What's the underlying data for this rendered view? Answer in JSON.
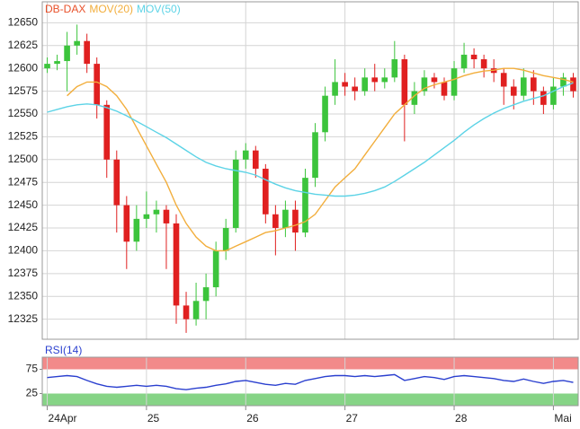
{
  "chart_data": [
    {
      "type": "candlestick",
      "categories": [
        "24Apr",
        null,
        null,
        null,
        null,
        null,
        null,
        null,
        null,
        null,
        "25",
        null,
        null,
        null,
        null,
        null,
        null,
        null,
        null,
        null,
        "26",
        null,
        null,
        null,
        null,
        null,
        null,
        null,
        null,
        null,
        "27",
        null,
        null,
        null,
        null,
        null,
        null,
        null,
        null,
        null,
        null,
        "28",
        null,
        null,
        null,
        null,
        null,
        null,
        null,
        null,
        null,
        "Mai",
        null,
        null
      ],
      "ylim": [
        12303,
        12673
      ],
      "yticks": [
        12325,
        12350,
        12375,
        12400,
        12425,
        12450,
        12475,
        12500,
        12525,
        12550,
        12575,
        12600,
        12625,
        12650
      ],
      "grid": true,
      "series": [
        {
          "name": "DB-DAX",
          "color": "#e8502a",
          "up_color": "#3cc43c",
          "down_color": "#e02020",
          "open": [
            12600,
            12605,
            12608,
            12625,
            12630,
            12605,
            12560,
            12500,
            12450,
            12410,
            12435,
            12440,
            12445,
            12430,
            12340,
            12325,
            12345,
            12360,
            12400,
            12425,
            12500,
            12510,
            12490,
            12440,
            12425,
            12445,
            12420,
            12480,
            12530,
            12570,
            12585,
            12580,
            12575,
            12590,
            12585,
            12590,
            12610,
            12560,
            12575,
            12590,
            12585,
            12570,
            12600,
            12615,
            12610,
            12600,
            12595,
            12580,
            12570,
            12590,
            12575,
            12560,
            12580,
            12590
          ],
          "high": [
            12612,
            12615,
            12640,
            12648,
            12638,
            12612,
            12565,
            12510,
            12460,
            12450,
            12465,
            12455,
            12450,
            12440,
            12355,
            12365,
            12375,
            12410,
            12435,
            12510,
            12518,
            12515,
            12495,
            12450,
            12455,
            12455,
            12490,
            12540,
            12580,
            12610,
            12595,
            12590,
            12600,
            12605,
            12600,
            12630,
            12615,
            12585,
            12598,
            12595,
            12590,
            12608,
            12628,
            12622,
            12615,
            12610,
            12600,
            12588,
            12600,
            12598,
            12580,
            12590,
            12595,
            12595
          ],
          "low": [
            12595,
            12598,
            12575,
            12615,
            12595,
            12545,
            12480,
            12420,
            12380,
            12400,
            12425,
            12420,
            12380,
            12320,
            12310,
            12318,
            12325,
            12350,
            12390,
            12420,
            12490,
            12480,
            12430,
            12395,
            12415,
            12400,
            12415,
            12470,
            12520,
            12560,
            12570,
            12565,
            12570,
            12575,
            12578,
            12585,
            12520,
            12550,
            12570,
            12578,
            12565,
            12565,
            12595,
            12600,
            12590,
            12585,
            12560,
            12555,
            12565,
            12560,
            12550,
            12555,
            12570,
            12568
          ],
          "close": [
            12605,
            12608,
            12625,
            12630,
            12605,
            12560,
            12500,
            12450,
            12410,
            12435,
            12440,
            12445,
            12430,
            12340,
            12325,
            12345,
            12360,
            12400,
            12425,
            12500,
            12510,
            12490,
            12440,
            12425,
            12445,
            12420,
            12480,
            12530,
            12570,
            12585,
            12580,
            12575,
            12590,
            12585,
            12590,
            12610,
            12560,
            12575,
            12590,
            12585,
            12570,
            12600,
            12615,
            12610,
            12600,
            12595,
            12580,
            12570,
            12590,
            12575,
            12560,
            12580,
            12590,
            12575
          ]
        },
        {
          "name": "MOV(20)",
          "type": "line",
          "color": "#f2ae3c",
          "values": [
            null,
            null,
            12570,
            12580,
            12585,
            12585,
            12580,
            12570,
            12555,
            12535,
            12515,
            12495,
            12475,
            12450,
            12430,
            12415,
            12405,
            12400,
            12400,
            12405,
            12410,
            12415,
            12420,
            12422,
            12425,
            12428,
            12432,
            12440,
            12455,
            12470,
            12480,
            12490,
            12505,
            12520,
            12535,
            12550,
            12560,
            12570,
            12578,
            12582,
            12585,
            12588,
            12592,
            12595,
            12597,
            12598,
            12600,
            12600,
            12598,
            12595,
            12592,
            12590,
            12588,
            12585
          ]
        },
        {
          "name": "MOV(50)",
          "type": "line",
          "color": "#5cd3e6",
          "values": [
            12552,
            12555,
            12558,
            12560,
            12561,
            12560,
            12557,
            12553,
            12548,
            12542,
            12536,
            12530,
            12524,
            12517,
            12510,
            12503,
            12497,
            12493,
            12490,
            12488,
            12486,
            12483,
            12478,
            12473,
            12469,
            12466,
            12464,
            12462,
            12461,
            12460,
            12460,
            12461,
            12463,
            12466,
            12470,
            12476,
            12483,
            12490,
            12497,
            12505,
            12513,
            12521,
            12530,
            12538,
            12545,
            12551,
            12556,
            12560,
            12564,
            12567,
            12570,
            12575,
            12580,
            12584
          ]
        }
      ]
    },
    {
      "type": "line",
      "ylim": [
        0,
        100
      ],
      "yticks": [
        25,
        75
      ],
      "bands": [
        {
          "range": [
            75,
            100
          ],
          "color": "#f28a8a"
        },
        {
          "range": [
            0,
            25
          ],
          "color": "#86d486"
        }
      ],
      "series": [
        {
          "name": "RSI(14)",
          "color": "#2a3fcf",
          "values": [
            58,
            60,
            62,
            60,
            52,
            45,
            40,
            38,
            40,
            42,
            40,
            42,
            40,
            35,
            33,
            36,
            38,
            42,
            45,
            50,
            52,
            48,
            44,
            42,
            46,
            44,
            52,
            56,
            60,
            62,
            62,
            60,
            62,
            60,
            62,
            64,
            52,
            56,
            60,
            58,
            54,
            60,
            62,
            60,
            58,
            56,
            52,
            50,
            55,
            50,
            46,
            50,
            52,
            48
          ]
        }
      ]
    }
  ]
}
